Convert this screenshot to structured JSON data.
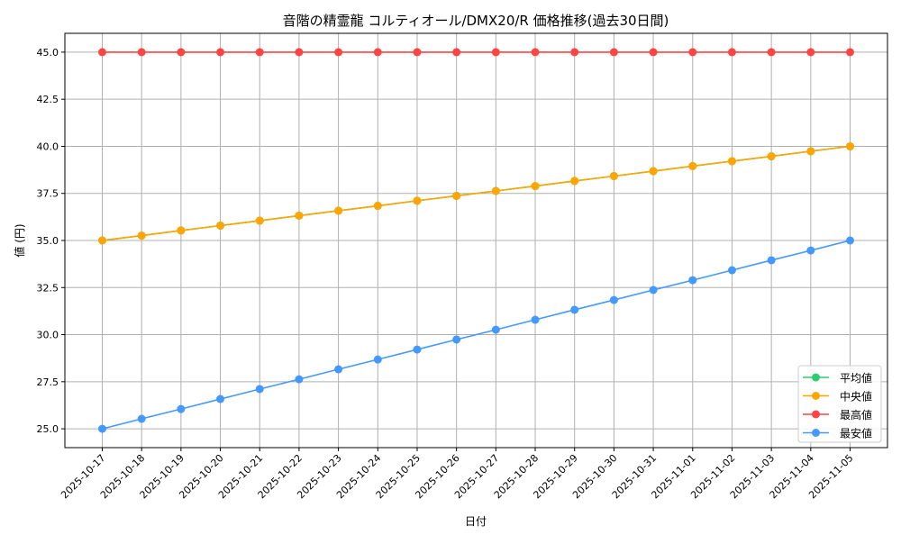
{
  "chart_data": {
    "type": "line",
    "title": "音階の精霊龍 コルティオール/DMX20/R 価格推移(過去30日間)",
    "xlabel": "日付",
    "ylabel": "値 (円)",
    "ylim": [
      24.0,
      46.0
    ],
    "yticks": [
      25.0,
      27.5,
      30.0,
      32.5,
      35.0,
      37.5,
      40.0,
      42.5,
      45.0
    ],
    "ytick_labels": [
      "25.0",
      "27.5",
      "30.0",
      "32.5",
      "35.0",
      "37.5",
      "40.0",
      "42.5",
      "45.0"
    ],
    "grid": true,
    "legend_position": "bottom-right",
    "categories": [
      "2025-10-17",
      "2025-10-18",
      "2025-10-19",
      "2025-10-20",
      "2025-10-21",
      "2025-10-22",
      "2025-10-23",
      "2025-10-24",
      "2025-10-25",
      "2025-10-26",
      "2025-10-27",
      "2025-10-28",
      "2025-10-29",
      "2025-10-30",
      "2025-10-31",
      "2025-11-01",
      "2025-11-02",
      "2025-11-03",
      "2025-11-04",
      "2025-11-05"
    ],
    "series": [
      {
        "name": "平均値",
        "color": "#2ecc71",
        "values": [
          35.0,
          35.26,
          35.53,
          35.79,
          36.05,
          36.32,
          36.58,
          36.84,
          37.11,
          37.37,
          37.63,
          37.89,
          38.16,
          38.42,
          38.68,
          38.95,
          39.21,
          39.47,
          39.74,
          40.0
        ]
      },
      {
        "name": "中央値",
        "color": "#ffa500",
        "values": [
          35.0,
          35.26,
          35.53,
          35.79,
          36.05,
          36.32,
          36.58,
          36.84,
          37.11,
          37.37,
          37.63,
          37.89,
          38.16,
          38.42,
          38.68,
          38.95,
          39.21,
          39.47,
          39.74,
          40.0
        ]
      },
      {
        "name": "最高値",
        "color": "#ff4444",
        "values": [
          45,
          45,
          45,
          45,
          45,
          45,
          45,
          45,
          45,
          45,
          45,
          45,
          45,
          45,
          45,
          45,
          45,
          45,
          45,
          45
        ]
      },
      {
        "name": "最安値",
        "color": "#4499ff",
        "values": [
          25.0,
          25.53,
          26.05,
          26.58,
          27.11,
          27.63,
          28.16,
          28.68,
          29.21,
          29.74,
          30.26,
          30.79,
          31.32,
          31.84,
          32.37,
          32.89,
          33.42,
          33.95,
          34.47,
          35.0
        ]
      }
    ]
  }
}
